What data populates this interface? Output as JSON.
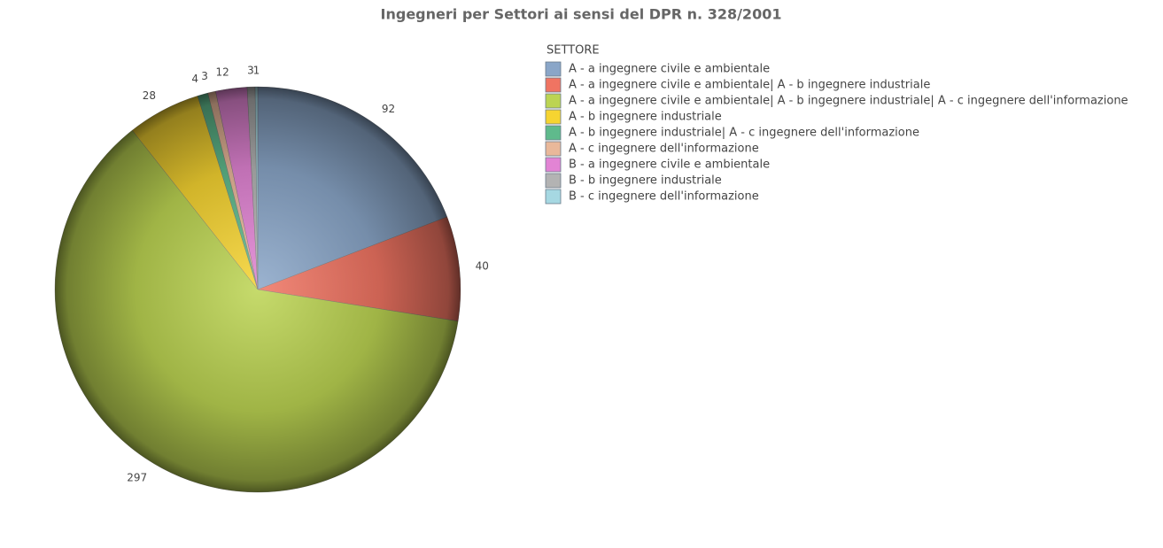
{
  "chart_data": {
    "type": "pie",
    "title": "Ingegneri per Settori ai sensi del DPR n. 328/2001",
    "legend_title": "SETTORE",
    "legend": "right",
    "categories": [
      "A - a ingegnere civile e ambientale",
      "A - a ingegnere civile e ambientale| A - b ingegnere industriale",
      "A - a ingegnere civile e ambientale| A - b ingegnere industriale| A - c ingegnere dell'informazione",
      "A - b ingegnere industriale",
      "A - b ingegnere industriale| A - c ingegnere dell'informazione",
      "A - c ingegnere dell'informazione",
      "B - a ingegnere civile e ambientale",
      "B - b ingegnere industriale",
      "B - c ingegnere dell'informazione"
    ],
    "values": [
      92,
      40,
      297,
      28,
      4,
      3,
      12,
      3,
      1
    ],
    "colors": [
      "#8aa6c8",
      "#f07462",
      "#bcd452",
      "#f6d431",
      "#5fba8c",
      "#e9b89a",
      "#e284d4",
      "#b3b3b3",
      "#a6d8e2"
    ]
  }
}
